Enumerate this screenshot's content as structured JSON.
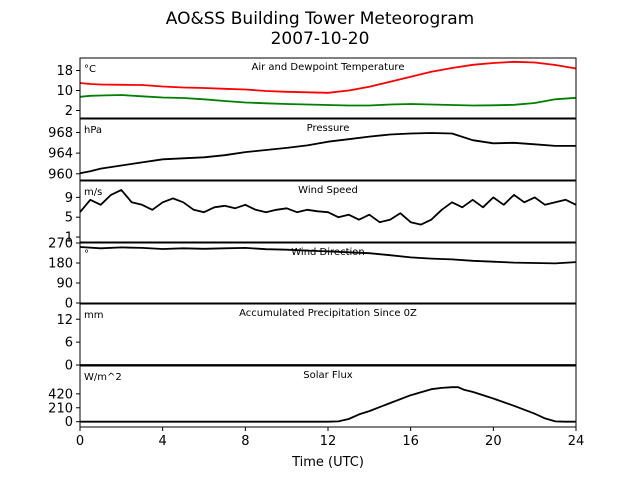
{
  "title_line1": "AO&SS Building Tower Meteorogram",
  "title_line2": "2007-10-20",
  "xlabel": "Time (UTC)",
  "x_ticks": [
    0,
    4,
    8,
    12,
    16,
    20,
    24
  ],
  "chart_data": [
    {
      "type": "line",
      "title": "Air and Dewpoint Temperature",
      "unit": "°C",
      "ylim": [
        -1,
        23
      ],
      "yticks": [
        2,
        10,
        18
      ],
      "series": [
        {
          "color": "#ff0000",
          "x": [
            0,
            0.5,
            1,
            2,
            3,
            4,
            5,
            6,
            7,
            8,
            9,
            10,
            11,
            12,
            13,
            14,
            15,
            16,
            17,
            18,
            19,
            20,
            21,
            22,
            23,
            24
          ],
          "values": [
            13,
            12.6,
            12.4,
            12.3,
            12.2,
            11.6,
            11.2,
            11,
            10.7,
            10.4,
            9.8,
            9.5,
            9.3,
            9.1,
            10,
            11.5,
            13.5,
            15.5,
            17.5,
            19,
            20.3,
            21,
            21.5,
            21.2,
            20.2,
            18.8
          ]
        },
        {
          "color": "#008000",
          "x": [
            0,
            0.5,
            1,
            2,
            3,
            4,
            5,
            6,
            7,
            8,
            9,
            10,
            11,
            12,
            13,
            14,
            15,
            16,
            17,
            18,
            19,
            20,
            21,
            22,
            23,
            24
          ],
          "values": [
            7.5,
            7.9,
            8,
            8.2,
            7.7,
            7.2,
            7,
            6.5,
            5.8,
            5.2,
            4.9,
            4.6,
            4.4,
            4.2,
            4,
            4,
            4.4,
            4.6,
            4.4,
            4.2,
            4,
            4.1,
            4.3,
            5,
            6.5,
            7.1
          ]
        }
      ]
    },
    {
      "type": "line",
      "title": "Pressure",
      "unit": "hPa",
      "ylim": [
        958.8,
        970.6
      ],
      "yticks": [
        960,
        964,
        968
      ],
      "series": [
        {
          "color": "#000000",
          "x": [
            0,
            0.5,
            1,
            2,
            3,
            4,
            5,
            6,
            7,
            8,
            9,
            10,
            11,
            12,
            13,
            14,
            15,
            16,
            17,
            18,
            19,
            20,
            21,
            22,
            23,
            24
          ],
          "values": [
            960.1,
            960.5,
            961,
            961.6,
            962.2,
            962.8,
            963,
            963.2,
            963.6,
            964.2,
            964.6,
            965,
            965.5,
            966.2,
            966.7,
            967.2,
            967.6,
            967.8,
            967.9,
            967.8,
            966.5,
            965.9,
            966,
            965.7,
            965.4,
            965.4
          ]
        }
      ]
    },
    {
      "type": "line",
      "title": "Wind Speed",
      "unit": "m/s",
      "ylim": [
        0,
        12.3
      ],
      "yticks": [
        1,
        5,
        9
      ],
      "series": [
        {
          "color": "#000000",
          "x": [
            0,
            0.5,
            1,
            1.5,
            2,
            2.5,
            3,
            3.5,
            4,
            4.5,
            5,
            5.5,
            6,
            6.5,
            7,
            7.5,
            8,
            8.5,
            9,
            9.5,
            10,
            10.5,
            11,
            11.5,
            12,
            12.5,
            13,
            13.5,
            14,
            14.5,
            15,
            15.5,
            16,
            16.5,
            17,
            17.5,
            18,
            18.5,
            19,
            19.5,
            20,
            20.5,
            21,
            21.5,
            22,
            22.5,
            23,
            23.5,
            24
          ],
          "values": [
            6,
            8.5,
            7.5,
            9.5,
            10.5,
            8,
            7.5,
            6.5,
            8,
            8.8,
            8,
            6.5,
            6,
            7,
            7.3,
            6.8,
            7.5,
            6.5,
            6,
            6.5,
            6.8,
            6,
            6.5,
            6.2,
            6,
            5,
            5.5,
            4.5,
            5.5,
            4,
            4.5,
            5.8,
            4,
            3.5,
            4.5,
            6.5,
            8,
            7,
            8.5,
            7,
            9,
            7.5,
            9.5,
            8,
            9,
            7.5,
            8,
            8.5,
            7.5
          ]
        }
      ]
    },
    {
      "type": "line",
      "title": "Wind Direction",
      "unit": "°",
      "ylim": [
        0,
        270
      ],
      "yticks": [
        0,
        90,
        180,
        270
      ],
      "series": [
        {
          "color": "#000000",
          "x": [
            0,
            1,
            2,
            3,
            4,
            5,
            6,
            7,
            8,
            9,
            10,
            11,
            12,
            13,
            14,
            15,
            16,
            17,
            18,
            19,
            20,
            21,
            22,
            23,
            24
          ],
          "values": [
            252,
            246,
            250,
            248,
            243,
            246,
            244,
            246,
            248,
            242,
            240,
            236,
            232,
            228,
            224,
            215,
            205,
            200,
            196,
            190,
            186,
            182,
            180,
            178,
            184
          ]
        }
      ]
    },
    {
      "type": "line",
      "title": "Accumulated Precipitation Since 0Z",
      "unit": "mm",
      "ylim": [
        0,
        16
      ],
      "yticks": [
        0,
        6,
        12
      ],
      "series": [
        {
          "color": "#000000",
          "x": [
            0,
            24
          ],
          "values": [
            0,
            0
          ]
        }
      ]
    },
    {
      "type": "line",
      "title": "Solar Flux",
      "unit": "W/m^2",
      "ylim": [
        -80,
        840
      ],
      "yticks": [
        0,
        210,
        420
      ],
      "series": [
        {
          "color": "#000000",
          "x": [
            0,
            11,
            12,
            12.5,
            13,
            13.5,
            14,
            15,
            16,
            17,
            17.5,
            18,
            18.3,
            18.6,
            19,
            20,
            21,
            22,
            22.5,
            23,
            23.5,
            24
          ],
          "values": [
            0,
            0,
            0,
            5,
            40,
            110,
            160,
            280,
            400,
            490,
            510,
            520,
            520,
            480,
            450,
            350,
            240,
            120,
            50,
            5,
            0,
            0
          ]
        }
      ]
    }
  ]
}
